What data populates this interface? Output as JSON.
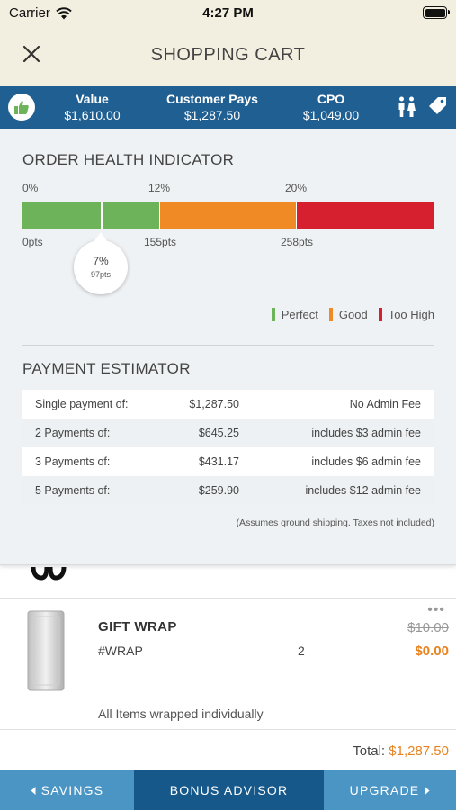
{
  "status_bar": {
    "carrier": "Carrier",
    "time": "4:27 PM"
  },
  "header": {
    "title": "SHOPPING CART"
  },
  "summary": {
    "value_label": "Value",
    "value": "$1,610.00",
    "pays_label": "Customer Pays",
    "pays": "$1,287.50",
    "cpo_label": "CPO",
    "cpo": "$1,049.00",
    "icons": [
      "thumbs-up-icon",
      "people-icon",
      "tag-icon"
    ]
  },
  "health": {
    "title": "ORDER HEALTH INDICATOR",
    "pct_labels": [
      "0%",
      "12%",
      "20%"
    ],
    "pts_labels": [
      "0pts",
      "155pts",
      "258pts"
    ],
    "indicator_pct": "7%",
    "indicator_pts": "97pts",
    "colors": {
      "perfect": "#6db35a",
      "good": "#f08a24",
      "too_high": "#d62030"
    },
    "legend": [
      "Perfect",
      "Good",
      "Too High"
    ]
  },
  "estimator": {
    "title": "PAYMENT ESTIMATOR",
    "rows": [
      {
        "label": "Single payment of:",
        "amount": "$1,287.50",
        "fee": "No Admin Fee"
      },
      {
        "label": "2 Payments of:",
        "amount": "$645.25",
        "fee": "includes $3 admin fee"
      },
      {
        "label": "3 Payments of:",
        "amount": "$431.17",
        "fee": "includes $6 admin fee"
      },
      {
        "label": "5 Payments of:",
        "amount": "$259.90",
        "fee": "includes $12 admin fee"
      }
    ],
    "note": "(Assumes ground shipping. Taxes not included)"
  },
  "cart": {
    "item": {
      "name": "GIFT WRAP",
      "sku": "#WRAP",
      "qty": "2",
      "original_price": "$10.00",
      "price": "$0.00",
      "more": "•••",
      "note": "All Items wrapped individually"
    },
    "total_label": "Total:",
    "total": "$1,287.50"
  },
  "tabs": {
    "savings": "SAVINGS",
    "bonus": "BONUS ADVISOR",
    "upgrade": "UPGRADE"
  }
}
